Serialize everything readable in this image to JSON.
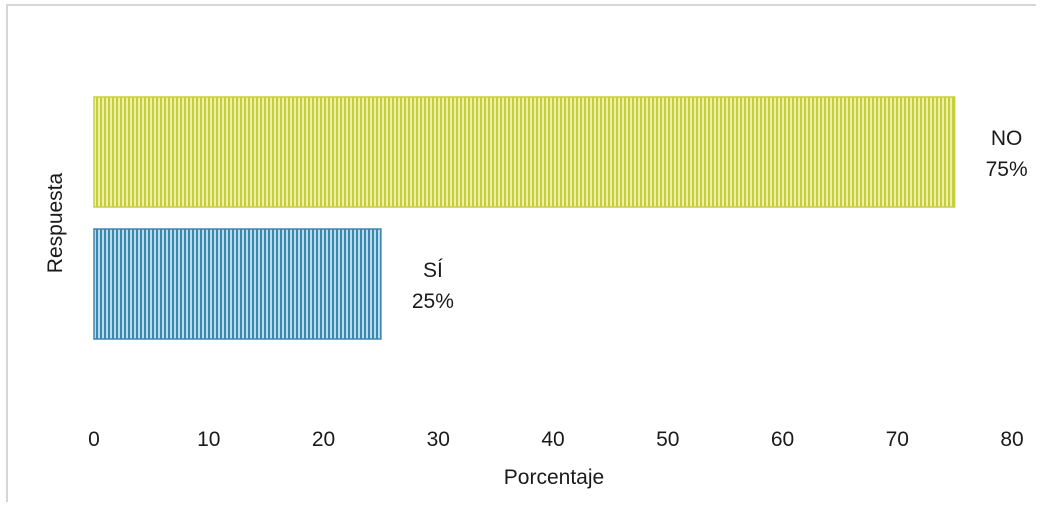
{
  "chart_data": {
    "type": "bar",
    "orientation": "horizontal",
    "title": "",
    "xlabel": "Porcentaje",
    "ylabel": "Respuesta",
    "xlim": [
      0,
      80
    ],
    "x_ticks": [
      "0",
      "10",
      "20",
      "30",
      "40",
      "50",
      "60",
      "70",
      "80"
    ],
    "grid": false,
    "legend": "none",
    "bars": [
      {
        "category": "NO",
        "value": 75,
        "label_line1": "NO",
        "label_line2": "75%",
        "color": "#c8cf3c",
        "stripe_color": "#eef0a8"
      },
      {
        "category": "SÍ",
        "value": 25,
        "label_line1": "SÍ",
        "label_line2": "25%",
        "color": "#3d86ad",
        "stripe_color": "#b6dcef"
      }
    ]
  }
}
